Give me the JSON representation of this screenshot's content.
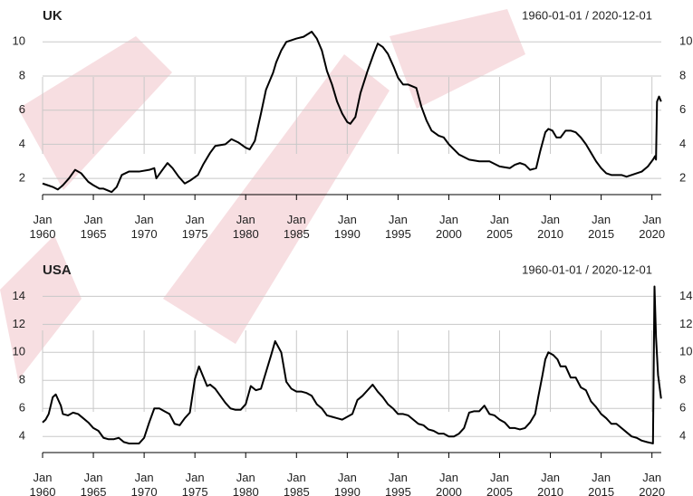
{
  "chart_data": [
    {
      "type": "line",
      "title": "UK",
      "subtitle": "1960-01-01 / 2020-12-01",
      "color": "#000000",
      "grid": true,
      "x": [
        1960,
        1960.5,
        1961,
        1961.5,
        1962,
        1962.6,
        1963.2,
        1963.8,
        1964.5,
        1965,
        1965.6,
        1966,
        1966.8,
        1967.3,
        1967.8,
        1968.5,
        1969.5,
        1970.5,
        1971,
        1971.2,
        1971.8,
        1972.3,
        1972.8,
        1973.4,
        1974,
        1974.6,
        1975.3,
        1975.8,
        1976.5,
        1977,
        1978,
        1978.6,
        1979.3,
        1980,
        1980.4,
        1980.9,
        1981.5,
        1982,
        1982.7,
        1983,
        1983.5,
        1984,
        1985,
        1985.7,
        1986.5,
        1987,
        1987.5,
        1988,
        1988.5,
        1989,
        1989.5,
        1990,
        1990.3,
        1990.8,
        1991.3,
        1992,
        1992.6,
        1993,
        1993.5,
        1994,
        1994.6,
        1995,
        1995.5,
        1996,
        1996.8,
        1997.3,
        1997.8,
        1998.3,
        1999,
        1999.5,
        2000,
        2000.5,
        2001,
        2002,
        2003,
        2004,
        2005,
        2006,
        2006.5,
        2007,
        2007.5,
        2008,
        2008.6,
        2009,
        2009.5,
        2009.8,
        2010.2,
        2010.6,
        2011,
        2011.5,
        2012,
        2012.5,
        2013,
        2013.5,
        2014,
        2014.5,
        2015,
        2015.5,
        2016,
        2017,
        2017.5,
        2018,
        2019,
        2019.6,
        2020.1,
        2020.3,
        2020.4,
        2020.5,
        2020.7,
        2020.9
      ],
      "values": [
        1.7,
        1.6,
        1.5,
        1.35,
        1.6,
        2.0,
        2.5,
        2.3,
        1.8,
        1.6,
        1.4,
        1.4,
        1.2,
        1.5,
        2.2,
        2.4,
        2.4,
        2.5,
        2.6,
        2.0,
        2.5,
        2.9,
        2.6,
        2.1,
        1.7,
        1.9,
        2.2,
        2.8,
        3.5,
        3.9,
        4.0,
        4.3,
        4.1,
        3.8,
        3.7,
        4.2,
        5.8,
        7.2,
        8.2,
        8.8,
        9.5,
        10.0,
        10.2,
        10.3,
        10.6,
        10.2,
        9.5,
        8.3,
        7.5,
        6.5,
        5.8,
        5.3,
        5.2,
        5.6,
        7.0,
        8.3,
        9.3,
        9.9,
        9.7,
        9.3,
        8.5,
        7.9,
        7.5,
        7.5,
        7.3,
        6.2,
        5.4,
        4.8,
        4.5,
        4.4,
        4.0,
        3.7,
        3.4,
        3.1,
        3.0,
        3.0,
        2.7,
        2.6,
        2.8,
        2.9,
        2.8,
        2.5,
        2.6,
        3.6,
        4.7,
        4.9,
        4.8,
        4.4,
        4.4,
        4.8,
        4.8,
        4.7,
        4.4,
        4.0,
        3.5,
        3.0,
        2.6,
        2.3,
        2.2,
        2.2,
        2.1,
        2.2,
        2.4,
        2.7,
        3.1,
        3.3,
        3.1,
        6.5,
        6.8,
        6.5
      ],
      "xlim": [
        1960,
        2020.92
      ],
      "xticks": [
        {
          "value": 1960,
          "label": "Jan 1960"
        },
        {
          "value": 1965,
          "label": "Jan 1965"
        },
        {
          "value": 1970,
          "label": "Jan 1970"
        },
        {
          "value": 1975,
          "label": "Jan 1975"
        },
        {
          "value": 1980,
          "label": "Jan 1980"
        },
        {
          "value": 1985,
          "label": "Jan 1985"
        },
        {
          "value": 1990,
          "label": "Jan 1990"
        },
        {
          "value": 1995,
          "label": "Jan 1995"
        },
        {
          "value": 2000,
          "label": "Jan 2000"
        },
        {
          "value": 2005,
          "label": "Jan 2005"
        },
        {
          "value": 2010,
          "label": "Jan 2010"
        },
        {
          "value": 2015,
          "label": "Jan 2015"
        },
        {
          "value": 2020,
          "label": "Jan 2020"
        }
      ],
      "ylim": [
        1.05,
        10.6
      ],
      "yticks": [
        2,
        4,
        6,
        8,
        10
      ]
    },
    {
      "type": "line",
      "title": "USA",
      "subtitle": "1960-01-01 / 2020-12-01",
      "color": "#000000",
      "grid": true,
      "x": [
        1960,
        1960.3,
        1960.6,
        1961,
        1961.3,
        1961.8,
        1962,
        1962.5,
        1963,
        1963.5,
        1964,
        1964.5,
        1965,
        1965.5,
        1966,
        1966.5,
        1967,
        1967.5,
        1968,
        1968.5,
        1969,
        1969.5,
        1970,
        1970.5,
        1971,
        1971.5,
        1972,
        1972.5,
        1973,
        1973.5,
        1974,
        1974.5,
        1975,
        1975.4,
        1975.8,
        1976.2,
        1976.5,
        1977,
        1977.5,
        1978,
        1978.5,
        1979,
        1979.5,
        1980,
        1980.5,
        1981,
        1981.5,
        1982,
        1982.5,
        1982.9,
        1983.5,
        1984,
        1984.5,
        1985,
        1985.5,
        1986,
        1986.5,
        1987,
        1987.5,
        1988,
        1988.5,
        1989,
        1989.5,
        1990,
        1990.5,
        1991,
        1991.5,
        1992,
        1992.5,
        1993,
        1993.5,
        1994,
        1994.5,
        1995,
        1995.5,
        1996,
        1996.5,
        1997,
        1997.5,
        1998,
        1998.5,
        1999,
        1999.5,
        2000,
        2000.5,
        2001,
        2001.5,
        2002,
        2002.5,
        2003,
        2003.5,
        2004,
        2004.5,
        2005,
        2005.5,
        2006,
        2006.5,
        2007,
        2007.5,
        2008,
        2008.5,
        2008.8,
        2009.2,
        2009.5,
        2009.8,
        2010.3,
        2010.7,
        2011,
        2011.5,
        2012,
        2012.5,
        2013,
        2013.5,
        2014,
        2014.5,
        2015,
        2015.5,
        2016,
        2016.5,
        2017,
        2017.5,
        2018,
        2018.5,
        2019,
        2019.5,
        2020.1,
        2020.25,
        2020.4,
        2020.6,
        2020.9
      ],
      "values": [
        5.0,
        5.2,
        5.6,
        6.8,
        7.0,
        6.2,
        5.6,
        5.5,
        5.7,
        5.6,
        5.3,
        5.0,
        4.6,
        4.4,
        3.9,
        3.8,
        3.8,
        3.9,
        3.6,
        3.5,
        3.5,
        3.5,
        3.9,
        5.0,
        6.0,
        6.0,
        5.8,
        5.6,
        4.9,
        4.8,
        5.3,
        5.7,
        8.1,
        9.0,
        8.3,
        7.6,
        7.7,
        7.4,
        6.9,
        6.4,
        6.0,
        5.9,
        5.9,
        6.3,
        7.6,
        7.3,
        7.4,
        8.6,
        9.8,
        10.8,
        10.0,
        7.9,
        7.4,
        7.2,
        7.2,
        7.1,
        6.9,
        6.3,
        6.0,
        5.5,
        5.4,
        5.3,
        5.2,
        5.4,
        5.6,
        6.6,
        6.9,
        7.3,
        7.7,
        7.2,
        6.8,
        6.3,
        6.0,
        5.6,
        5.6,
        5.5,
        5.2,
        4.9,
        4.8,
        4.5,
        4.4,
        4.2,
        4.2,
        4.0,
        4.0,
        4.2,
        4.6,
        5.7,
        5.8,
        5.8,
        6.2,
        5.6,
        5.5,
        5.2,
        5.0,
        4.6,
        4.6,
        4.5,
        4.6,
        5.0,
        5.6,
        6.8,
        8.3,
        9.5,
        10.0,
        9.8,
        9.5,
        9.0,
        9.0,
        8.2,
        8.2,
        7.5,
        7.3,
        6.5,
        6.1,
        5.6,
        5.3,
        4.9,
        4.9,
        4.6,
        4.3,
        4.0,
        3.9,
        3.7,
        3.6,
        3.5,
        14.7,
        11.1,
        8.4,
        6.7
      ],
      "xlim": [
        1960,
        2020.92
      ],
      "xticks": [
        {
          "value": 1960,
          "label": "Jan 1960"
        },
        {
          "value": 1965,
          "label": "Jan 1965"
        },
        {
          "value": 1970,
          "label": "Jan 1970"
        },
        {
          "value": 1975,
          "label": "Jan 1975"
        },
        {
          "value": 1980,
          "label": "Jan 1980"
        },
        {
          "value": 1985,
          "label": "Jan 1985"
        },
        {
          "value": 1990,
          "label": "Jan 1990"
        },
        {
          "value": 1995,
          "label": "Jan 1995"
        },
        {
          "value": 2000,
          "label": "Jan 2000"
        },
        {
          "value": 2005,
          "label": "Jan 2005"
        },
        {
          "value": 2010,
          "label": "Jan 2010"
        },
        {
          "value": 2015,
          "label": "Jan 2015"
        },
        {
          "value": 2020,
          "label": "Jan 2020"
        }
      ],
      "ylim": [
        2.85,
        14.8
      ],
      "yticks": [
        4,
        6,
        8,
        10,
        12,
        14
      ]
    }
  ]
}
